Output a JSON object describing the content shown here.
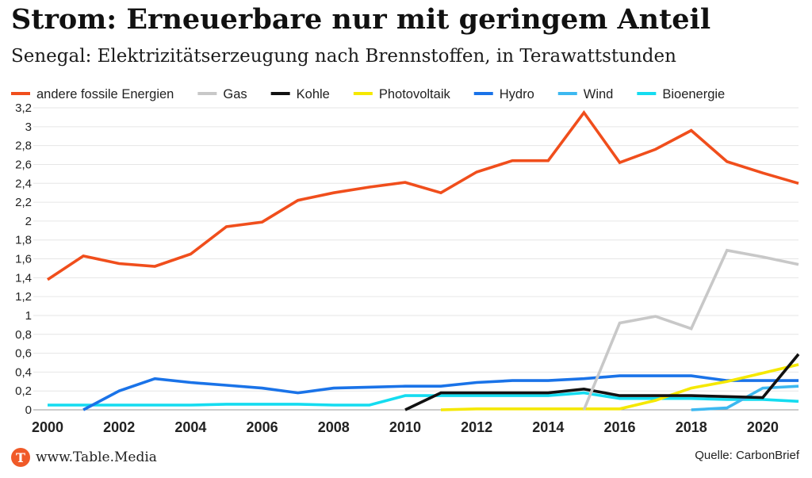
{
  "header": {
    "title": "Strom: Erneuerbare nur mit geringem Anteil",
    "subtitle": "Senegal: Elektrizitätserzeugung nach Brennstoffen, in Terawattstunden"
  },
  "footer": {
    "brand": "www.Table.Media",
    "logo_letter": "T",
    "source": "Quelle: CarbonBrief"
  },
  "colors": {
    "accent": "#f05a28",
    "grid": "#e6e6e6"
  },
  "chart_data": {
    "type": "line",
    "title": "Strom: Erneuerbare nur mit geringem Anteil",
    "subtitle": "Senegal: Elektrizitätserzeugung nach Brennstoffen, in Terawattstunden",
    "xlabel": "",
    "ylabel": "",
    "xlim": [
      2000,
      2021
    ],
    "ylim": [
      0,
      3.2
    ],
    "grid": true,
    "legend_position": "top",
    "x_ticks": [
      "2000",
      "2002",
      "2004",
      "2006",
      "2008",
      "2010",
      "2012",
      "2014",
      "2016",
      "2018",
      "2020"
    ],
    "y_ticks": [
      "0",
      "0,2",
      "0,4",
      "0,6",
      "0,8",
      "1",
      "1,2",
      "1,4",
      "1,6",
      "1,8",
      "2",
      "2,2",
      "2,4",
      "2,6",
      "2,8",
      "3",
      "3,2"
    ],
    "x": [
      2000,
      2001,
      2002,
      2003,
      2004,
      2005,
      2006,
      2007,
      2008,
      2009,
      2010,
      2011,
      2012,
      2013,
      2014,
      2015,
      2016,
      2017,
      2018,
      2019,
      2020,
      2021
    ],
    "series": [
      {
        "name": "andere fossile Energien",
        "color": "#f04e1c",
        "values": [
          1.38,
          1.63,
          1.55,
          1.52,
          1.65,
          1.94,
          1.99,
          2.22,
          2.3,
          2.36,
          2.41,
          2.3,
          2.52,
          2.64,
          2.64,
          3.15,
          2.62,
          2.76,
          2.96,
          2.63,
          2.51,
          2.4
        ]
      },
      {
        "name": "Gas",
        "color": "#c8c8c8",
        "values": [
          null,
          null,
          null,
          null,
          null,
          null,
          null,
          null,
          null,
          null,
          null,
          null,
          null,
          null,
          null,
          0.0,
          0.92,
          0.99,
          0.86,
          1.69,
          1.62,
          1.54
        ]
      },
      {
        "name": "Kohle",
        "color": "#111111",
        "values": [
          null,
          null,
          null,
          null,
          null,
          null,
          null,
          null,
          null,
          null,
          0.0,
          0.18,
          0.18,
          0.18,
          0.18,
          0.22,
          0.15,
          0.15,
          0.15,
          0.14,
          0.13,
          0.59
        ]
      },
      {
        "name": "Photovoltaik",
        "color": "#f5e800",
        "values": [
          null,
          null,
          null,
          null,
          null,
          null,
          null,
          null,
          null,
          null,
          null,
          0.0,
          0.01,
          0.01,
          0.01,
          0.01,
          0.01,
          0.1,
          0.23,
          0.3,
          0.39,
          0.48
        ]
      },
      {
        "name": "Hydro",
        "color": "#1a73e8",
        "values": [
          null,
          0.0,
          0.2,
          0.33,
          0.29,
          0.26,
          0.23,
          0.18,
          0.23,
          0.24,
          0.25,
          0.25,
          0.29,
          0.31,
          0.31,
          0.33,
          0.36,
          0.36,
          0.36,
          0.31,
          0.31,
          0.31
        ]
      },
      {
        "name": "Wind",
        "color": "#3db8f0",
        "values": [
          null,
          null,
          null,
          null,
          null,
          null,
          null,
          null,
          null,
          null,
          null,
          null,
          null,
          null,
          null,
          null,
          null,
          null,
          0.0,
          0.02,
          0.23,
          0.25
        ]
      },
      {
        "name": "Bioenergie",
        "color": "#14dcf0",
        "values": [
          0.05,
          0.05,
          0.05,
          0.05,
          0.05,
          0.06,
          0.06,
          0.06,
          0.05,
          0.05,
          0.15,
          0.15,
          0.15,
          0.15,
          0.15,
          0.18,
          0.12,
          0.12,
          0.12,
          0.11,
          0.11,
          0.09
        ]
      }
    ]
  }
}
